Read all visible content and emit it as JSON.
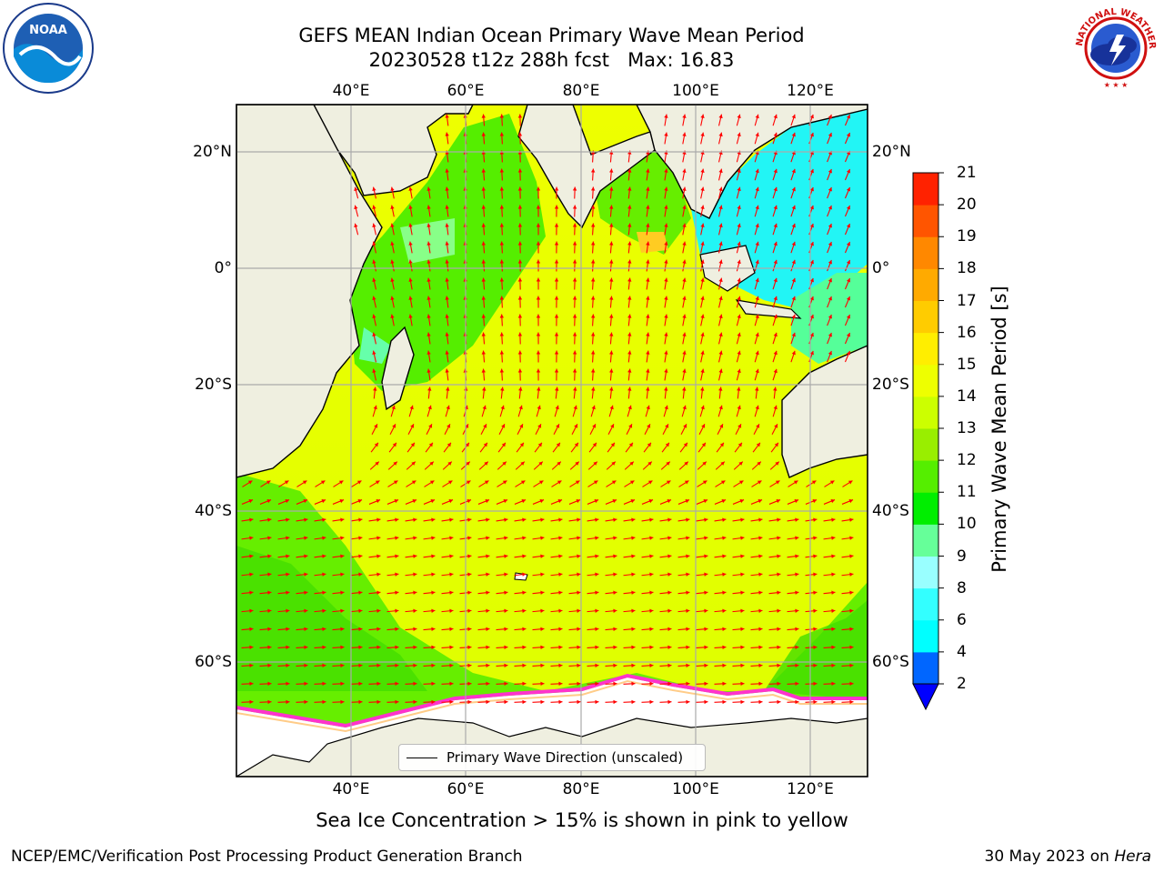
{
  "title": {
    "line1": "GEFS MEAN Indian Ocean Primary Wave Mean Period",
    "line2": "20230528 t12z 288h fcst   Max: 16.83"
  },
  "map": {
    "lon_labels": [
      "40°E",
      "60°E",
      "80°E",
      "100°E",
      "120°E"
    ],
    "lat_labels": [
      "20°N",
      "0°",
      "20°S",
      "40°S",
      "60°S"
    ],
    "legend_label": "Primary Wave Direction (unscaled)",
    "land_color": "#efefe0",
    "ice_color": "#ffffff",
    "arrow_color": "#ff0000"
  },
  "colorbar": {
    "label": "Primary Wave Mean Period [s]",
    "ticks": [
      "2",
      "4",
      "6",
      "8",
      "9",
      "10",
      "11",
      "12",
      "13",
      "14",
      "15",
      "16",
      "17",
      "18",
      "19",
      "20",
      "21"
    ],
    "colors": [
      "#0066ff",
      "#00ffff",
      "#33ffff",
      "#99ffff",
      "#66ff99",
      "#00ee00",
      "#55ee00",
      "#99ee00",
      "#ccff00",
      "#eeff00",
      "#ffee00",
      "#ffcc00",
      "#ffaa00",
      "#ff8800",
      "#ff5500",
      "#ff2200"
    ],
    "under_color": "#0000ff"
  },
  "chart_data": {
    "type": "heatmap",
    "title": "GEFS MEAN Indian Ocean Primary Wave Mean Period",
    "subtitle": "20230528 t12z 288h fcst   Max: 16.83",
    "colorbar_label": "Primary Wave Mean Period [s]",
    "colorbar_range": [
      2,
      21
    ],
    "max_value": 16.83,
    "lon_range": [
      20,
      130
    ],
    "lat_range": [
      -70,
      28
    ],
    "grid": true
  },
  "footnote": "Sea Ice Concentration > 15% is shown in pink to yellow",
  "footer": {
    "left": "NCEP/EMC/Verification Post Processing Product Generation Branch",
    "right_prefix": "30 May 2023 on ",
    "right_host": "Hera"
  },
  "logos": {
    "noaa_text": "NOAA",
    "nws_text": "NATIONAL WEATHER SERVICE"
  }
}
